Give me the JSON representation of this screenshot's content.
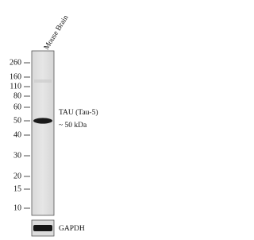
{
  "lane_label": "Mouse Brain",
  "markers": [
    "260",
    "160",
    "110",
    "80",
    "60",
    "50",
    "40",
    "30",
    "20",
    "15",
    "10"
  ],
  "band_label": {
    "name": "TAU (Tau-5)",
    "size": "~  50 kDa"
  },
  "loading_control": "GAPDH"
}
